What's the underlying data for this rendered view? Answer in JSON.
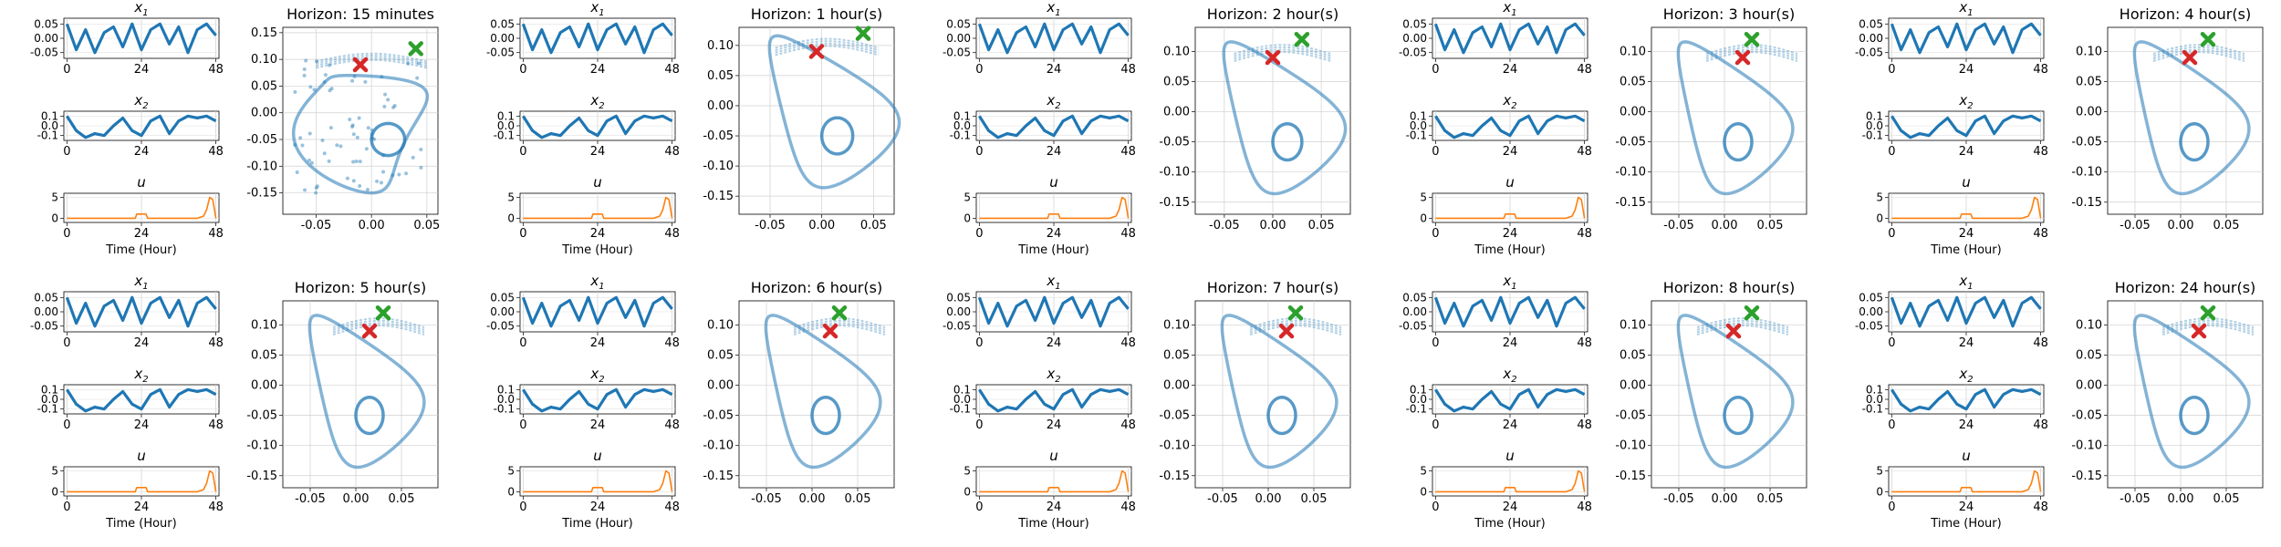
{
  "figure": {
    "xtick_labels_small": [
      "0",
      "24",
      "48"
    ],
    "x1_title": "x",
    "x1_sub": "1",
    "x2_title": "x",
    "x2_sub": "2",
    "u_title": "u",
    "time_label": "Time (Hour)"
  },
  "chart_data": [
    {
      "type": "line",
      "panel": "x1",
      "title": "x1",
      "ylim": [
        -0.07,
        0.07
      ],
      "ytick_labels": [
        "0.05",
        "0.00",
        "-0.05"
      ],
      "xlabel": "",
      "x_ticks": [
        0,
        24,
        48
      ],
      "series": [
        {
          "x": [
            0,
            3,
            6,
            9,
            12,
            15,
            18,
            21,
            24,
            27,
            30,
            33,
            36,
            39,
            42,
            45,
            48
          ],
          "values": [
            0.05,
            -0.04,
            0.03,
            -0.05,
            0.02,
            0.04,
            -0.03,
            0.05,
            -0.04,
            0.03,
            0.05,
            -0.02,
            0.04,
            -0.05,
            0.03,
            0.05,
            0.01
          ]
        }
      ]
    },
    {
      "type": "line",
      "panel": "x2",
      "title": "x2",
      "ylim": [
        -0.15,
        0.15
      ],
      "ytick_labels": [
        "0.1",
        "0.0",
        "-0.1"
      ],
      "x_ticks": [
        0,
        24,
        48
      ],
      "series": [
        {
          "x": [
            0,
            3,
            6,
            9,
            12,
            15,
            18,
            21,
            24,
            27,
            30,
            33,
            36,
            39,
            42,
            45,
            48
          ],
          "values": [
            0.1,
            -0.05,
            -0.12,
            -0.08,
            -0.1,
            0.0,
            0.08,
            -0.05,
            -0.1,
            0.05,
            0.1,
            -0.08,
            0.05,
            0.1,
            0.08,
            0.1,
            0.05
          ]
        }
      ]
    },
    {
      "type": "line",
      "panel": "u",
      "title": "u",
      "xlabel": "Time (Hour)",
      "ylim": [
        -1,
        6
      ],
      "ytick_labels": [
        "5",
        "0"
      ],
      "x_ticks": [
        0,
        24,
        48
      ],
      "series": [
        {
          "x": [
            0,
            22,
            22.5,
            25.5,
            26,
            42,
            44,
            45,
            46,
            47,
            48
          ],
          "values": [
            0,
            0,
            1,
            1,
            0,
            0,
            0.5,
            2,
            5,
            4.5,
            0
          ]
        }
      ]
    },
    {
      "type": "scatter",
      "panel": "phase",
      "title": "Horizon: 15 minutes",
      "xlim": [
        -0.08,
        0.06
      ],
      "ylim": [
        -0.19,
        0.16
      ],
      "xticks": [
        "-0.05",
        "0.00",
        "0.05"
      ],
      "yticks": [
        "0.15",
        "0.10",
        "0.05",
        "0.00",
        "-0.05",
        "-0.10",
        "-0.15"
      ],
      "series": [
        {
          "name": "trajectory"
        }
      ],
      "markers": {
        "red_x": [
          -0.01,
          0.09
        ],
        "green_x": [
          0.04,
          0.12
        ]
      }
    },
    {
      "type": "scatter",
      "panel": "phase",
      "title": "Horizon: 1 hour(s)",
      "xlim": [
        -0.08,
        0.07
      ],
      "ylim": [
        -0.18,
        0.13
      ],
      "xticks": [
        "-0.05",
        "0.00",
        "0.05"
      ],
      "yticks": [
        "0.10",
        "0.05",
        "0.00",
        "-0.05",
        "-0.10",
        "-0.15"
      ],
      "markers": {
        "red_x": [
          -0.005,
          0.09
        ],
        "green_x": [
          0.04,
          0.12
        ]
      }
    },
    {
      "type": "scatter",
      "panel": "phase",
      "title": "Horizon: 2 hour(s)",
      "xlim": [
        -0.08,
        0.08
      ],
      "ylim": [
        -0.17,
        0.14
      ],
      "xticks": [
        "-0.05",
        "0.00",
        "0.05"
      ],
      "yticks": [
        "0.10",
        "0.05",
        "0.00",
        "-0.05",
        "-0.10",
        "-0.15"
      ],
      "markers": {
        "red_x": [
          0.0,
          0.09
        ],
        "green_x": [
          0.03,
          0.12
        ]
      }
    },
    {
      "type": "scatter",
      "panel": "phase",
      "title": "Horizon: 3 hour(s)",
      "xlim": [
        -0.08,
        0.09
      ],
      "ylim": [
        -0.17,
        0.14
      ],
      "xticks": [
        "-0.05",
        "0.00",
        "0.05"
      ],
      "yticks": [
        "0.10",
        "0.05",
        "0.00",
        "-0.05",
        "-0.10",
        "-0.15"
      ],
      "markers": {
        "red_x": [
          0.02,
          0.09
        ],
        "green_x": [
          0.03,
          0.12
        ]
      }
    },
    {
      "type": "scatter",
      "panel": "phase",
      "title": "Horizon: 4 hour(s)",
      "xlim": [
        -0.08,
        0.09
      ],
      "ylim": [
        -0.17,
        0.14
      ],
      "xticks": [
        "-0.05",
        "0.00",
        "0.05"
      ],
      "yticks": [
        "0.10",
        "0.05",
        "0.00",
        "-0.05",
        "-0.10",
        "-0.15"
      ],
      "markers": {
        "red_x": [
          0.01,
          0.09
        ],
        "green_x": [
          0.03,
          0.12
        ]
      }
    },
    {
      "type": "scatter",
      "panel": "phase",
      "title": "Horizon: 5 hour(s)",
      "xlim": [
        -0.08,
        0.09
      ],
      "ylim": [
        -0.17,
        0.14
      ],
      "xticks": [
        "-0.05",
        "0.00",
        "0.05"
      ],
      "yticks": [
        "0.10",
        "0.05",
        "0.00",
        "-0.05",
        "-0.10",
        "-0.15"
      ],
      "markers": {
        "red_x": [
          0.015,
          0.09
        ],
        "green_x": [
          0.03,
          0.12
        ]
      }
    },
    {
      "type": "scatter",
      "panel": "phase",
      "title": "Horizon: 6 hour(s)",
      "xlim": [
        -0.08,
        0.09
      ],
      "ylim": [
        -0.17,
        0.14
      ],
      "xticks": [
        "-0.05",
        "0.00",
        "0.05"
      ],
      "yticks": [
        "0.10",
        "0.05",
        "0.00",
        "-0.05",
        "-0.10",
        "-0.15"
      ],
      "markers": {
        "red_x": [
          0.02,
          0.09
        ],
        "green_x": [
          0.03,
          0.12
        ]
      }
    },
    {
      "type": "scatter",
      "panel": "phase",
      "title": "Horizon: 7 hour(s)",
      "xlim": [
        -0.08,
        0.09
      ],
      "ylim": [
        -0.17,
        0.14
      ],
      "xticks": [
        "-0.05",
        "0.00",
        "0.05"
      ],
      "yticks": [
        "0.10",
        "0.05",
        "0.00",
        "-0.05",
        "-0.10",
        "-0.15"
      ],
      "markers": {
        "red_x": [
          0.02,
          0.09
        ],
        "green_x": [
          0.03,
          0.12
        ]
      }
    },
    {
      "type": "scatter",
      "panel": "phase",
      "title": "Horizon: 8 hour(s)",
      "xlim": [
        -0.08,
        0.09
      ],
      "ylim": [
        -0.17,
        0.14
      ],
      "xticks": [
        "-0.05",
        "0.00",
        "0.05"
      ],
      "yticks": [
        "0.10",
        "0.05",
        "0.00",
        "-0.05",
        "-0.10",
        "-0.15"
      ],
      "markers": {
        "red_x": [
          0.01,
          0.09
        ],
        "green_x": [
          0.03,
          0.12
        ]
      }
    },
    {
      "type": "scatter",
      "panel": "phase",
      "title": "Horizon: 24 hour(s)",
      "xlim": [
        -0.08,
        0.09
      ],
      "ylim": [
        -0.17,
        0.14
      ],
      "xticks": [
        "-0.05",
        "0.00",
        "0.05"
      ],
      "yticks": [
        "0.10",
        "0.05",
        "0.00",
        "-0.05",
        "-0.10",
        "-0.15"
      ],
      "markers": {
        "red_x": [
          0.02,
          0.09
        ],
        "green_x": [
          0.03,
          0.12
        ]
      }
    }
  ],
  "colors": {
    "blue": "#1f77b4",
    "orange": "#ff7f0e",
    "red": "#d62728",
    "green": "#2ca02c"
  }
}
